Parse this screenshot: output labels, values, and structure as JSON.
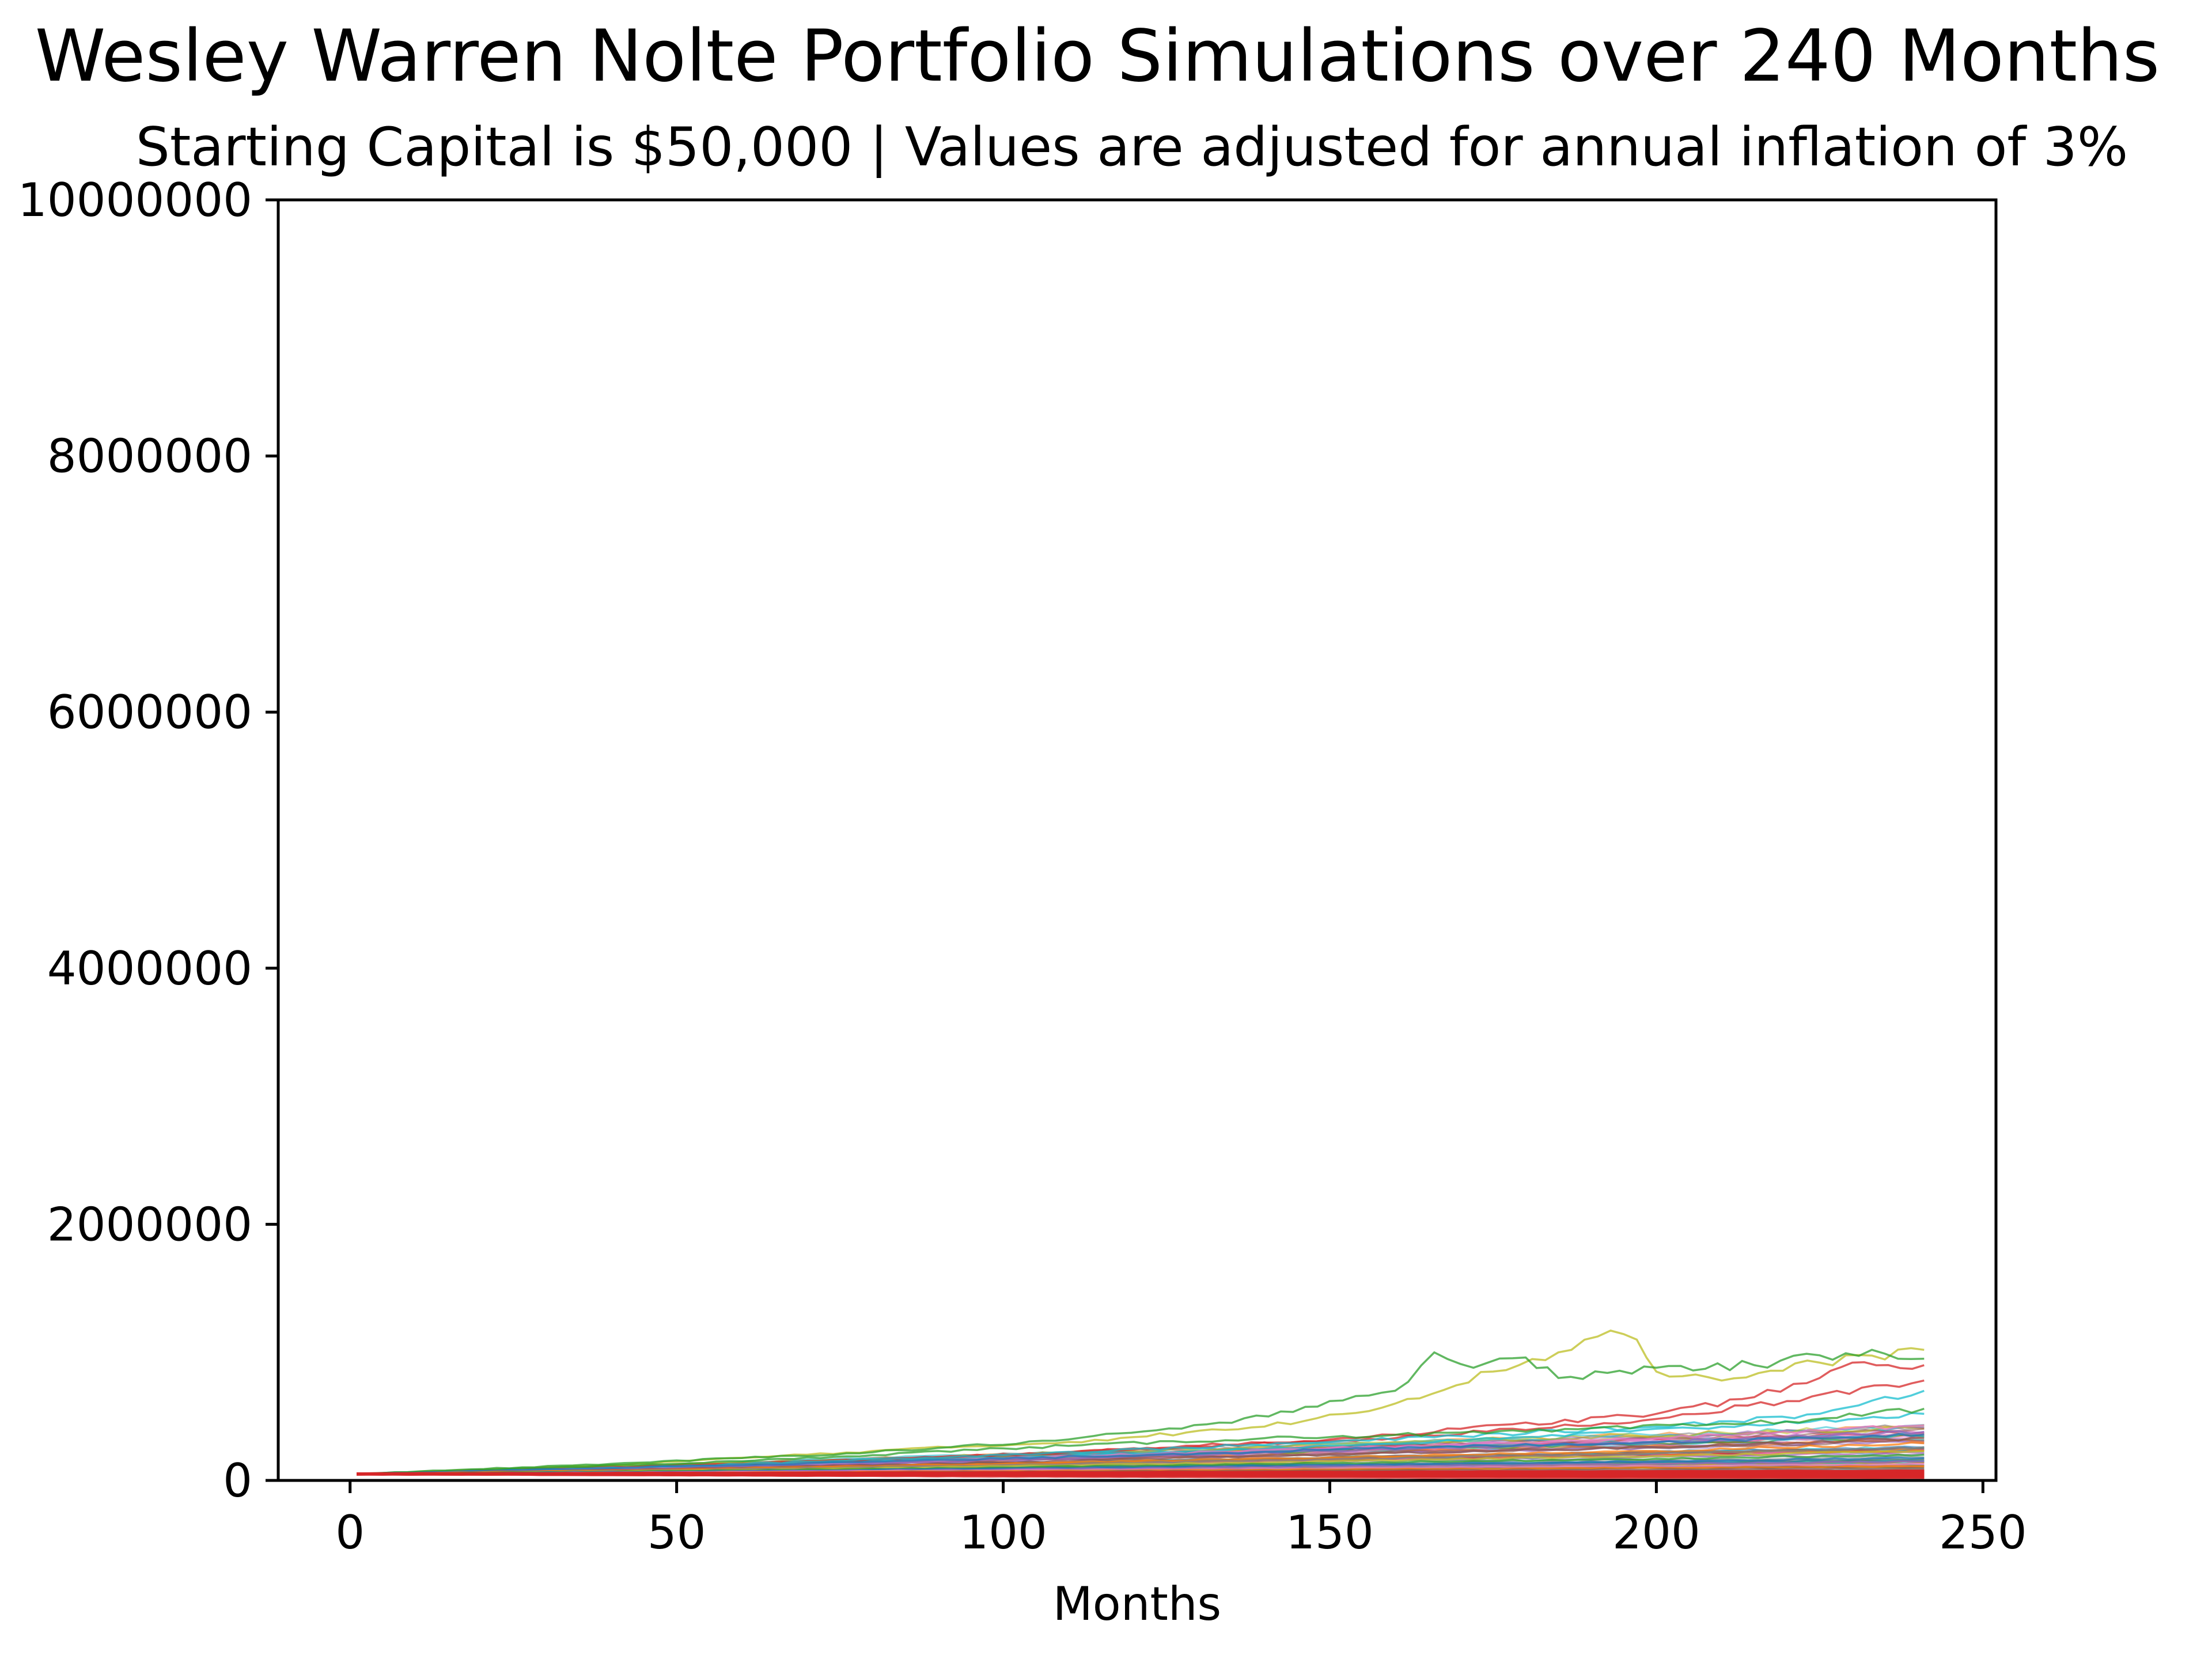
{
  "chart_data": {
    "type": "line",
    "title": "Wesley Warren Nolte Portfolio Simulations over 240 Months",
    "subtitle": "Starting Capital is $50,000 | Values are adjusted for annual inflation of 3%",
    "xlabel": "Months",
    "ylabel": "",
    "xlim": [
      -11,
      252
    ],
    "ylim": [
      0,
      10000000
    ],
    "x_ticks": [
      0,
      50,
      100,
      150,
      200,
      250
    ],
    "y_ticks": [
      0,
      2000000,
      4000000,
      6000000,
      8000000,
      10000000
    ],
    "x_tick_labels": [
      "0",
      "50",
      "100",
      "150",
      "200",
      "250"
    ],
    "y_tick_labels": [
      "0",
      "2000000",
      "4000000",
      "6000000",
      "8000000",
      "10000000"
    ],
    "grid": false,
    "legend": "none",
    "x_start": 1,
    "x_end": 241,
    "starting_value": 50000,
    "colors": [
      "#1f77b4",
      "#ff7f0e",
      "#2ca02c",
      "#d62728",
      "#9467bd",
      "#8c564b",
      "#e377c2",
      "#7f7f7f",
      "#bcbd22",
      "#17becf"
    ],
    "series_line_color": "#d62728",
    "series": [
      {
        "color": "#bcbd22",
        "points": [
          [
            1,
            50000
          ],
          [
            40,
            120000
          ],
          [
            80,
            230000
          ],
          [
            110,
            300000
          ],
          [
            140,
            420000
          ],
          [
            160,
            600000
          ],
          [
            175,
            850000
          ],
          [
            185,
            1000000
          ],
          [
            193,
            1170000
          ],
          [
            197,
            1100000
          ],
          [
            200,
            850000
          ],
          [
            210,
            780000
          ],
          [
            225,
            920000
          ],
          [
            241,
            1020000
          ]
        ]
      },
      {
        "color": "#2ca02c",
        "points": [
          [
            1,
            50000
          ],
          [
            40,
            130000
          ],
          [
            80,
            220000
          ],
          [
            110,
            320000
          ],
          [
            135,
            450000
          ],
          [
            150,
            620000
          ],
          [
            160,
            700000
          ],
          [
            166,
            1000000
          ],
          [
            172,
            880000
          ],
          [
            180,
            960000
          ],
          [
            185,
            800000
          ],
          [
            200,
            880000
          ],
          [
            215,
            900000
          ],
          [
            233,
            1020000
          ],
          [
            241,
            950000
          ]
        ]
      },
      {
        "color": "#d62728",
        "points": [
          [
            1,
            50000
          ],
          [
            60,
            130000
          ],
          [
            100,
            200000
          ],
          [
            150,
            320000
          ],
          [
            200,
            520000
          ],
          [
            215,
            650000
          ],
          [
            225,
            800000
          ],
          [
            230,
            920000
          ],
          [
            241,
            900000
          ]
        ]
      },
      {
        "color": "#d62728",
        "points": [
          [
            1,
            50000
          ],
          [
            60,
            120000
          ],
          [
            110,
            220000
          ],
          [
            160,
            330000
          ],
          [
            200,
            480000
          ],
          [
            220,
            620000
          ],
          [
            241,
            780000
          ]
        ]
      },
      {
        "color": "#17becf",
        "points": [
          [
            1,
            50000
          ],
          [
            50,
            110000
          ],
          [
            100,
            200000
          ],
          [
            150,
            300000
          ],
          [
            200,
            420000
          ],
          [
            225,
            520000
          ],
          [
            241,
            700000
          ]
        ]
      },
      {
        "color": "#17becf",
        "points": [
          [
            1,
            50000
          ],
          [
            70,
            130000
          ],
          [
            120,
            210000
          ],
          [
            170,
            310000
          ],
          [
            210,
            420000
          ],
          [
            241,
            520000
          ]
        ]
      },
      {
        "color": "#2ca02c",
        "points": [
          [
            1,
            50000
          ],
          [
            60,
            150000
          ],
          [
            100,
            250000
          ],
          [
            140,
            330000
          ],
          [
            180,
            380000
          ],
          [
            220,
            460000
          ],
          [
            241,
            560000
          ]
        ]
      },
      {
        "color": "#e377c2",
        "points": [
          [
            1,
            50000
          ],
          [
            50,
            100000
          ],
          [
            100,
            170000
          ],
          [
            150,
            250000
          ],
          [
            200,
            330000
          ],
          [
            241,
            430000
          ]
        ]
      },
      {
        "color": "#9467bd",
        "points": [
          [
            1,
            50000
          ],
          [
            50,
            95000
          ],
          [
            100,
            160000
          ],
          [
            150,
            230000
          ],
          [
            200,
            300000
          ],
          [
            241,
            380000
          ]
        ]
      },
      {
        "color": "#1f77b4",
        "points": [
          [
            1,
            50000
          ],
          [
            50,
            110000
          ],
          [
            100,
            170000
          ],
          [
            150,
            240000
          ],
          [
            200,
            300000
          ],
          [
            241,
            360000
          ]
        ]
      },
      {
        "color": "#8c564b",
        "points": [
          [
            1,
            50000
          ],
          [
            50,
            90000
          ],
          [
            100,
            140000
          ],
          [
            150,
            200000
          ],
          [
            200,
            260000
          ],
          [
            241,
            330000
          ]
        ]
      },
      {
        "color": "#ff7f0e",
        "points": [
          [
            1,
            50000
          ],
          [
            50,
            85000
          ],
          [
            100,
            130000
          ],
          [
            150,
            180000
          ],
          [
            200,
            230000
          ],
          [
            241,
            290000
          ]
        ]
      },
      {
        "color": "#7f7f7f",
        "points": [
          [
            1,
            50000
          ],
          [
            50,
            80000
          ],
          [
            100,
            120000
          ],
          [
            150,
            165000
          ],
          [
            200,
            210000
          ],
          [
            241,
            260000
          ]
        ]
      },
      {
        "color": "#bcbd22",
        "points": [
          [
            1,
            50000
          ],
          [
            50,
            75000
          ],
          [
            100,
            110000
          ],
          [
            150,
            150000
          ],
          [
            200,
            190000
          ],
          [
            241,
            230000
          ]
        ]
      },
      {
        "color": "#2ca02c",
        "points": [
          [
            1,
            50000
          ],
          [
            50,
            72000
          ],
          [
            100,
            100000
          ],
          [
            150,
            135000
          ],
          [
            200,
            170000
          ],
          [
            241,
            200000
          ]
        ]
      },
      {
        "color": "#1f77b4",
        "points": [
          [
            1,
            50000
          ],
          [
            50,
            68000
          ],
          [
            100,
            92000
          ],
          [
            150,
            120000
          ],
          [
            200,
            150000
          ],
          [
            241,
            175000
          ]
        ]
      },
      {
        "color": "#9467bd",
        "points": [
          [
            1,
            50000
          ],
          [
            50,
            65000
          ],
          [
            100,
            85000
          ],
          [
            150,
            108000
          ],
          [
            200,
            130000
          ],
          [
            241,
            150000
          ]
        ]
      },
      {
        "color": "#e377c2",
        "points": [
          [
            1,
            50000
          ],
          [
            50,
            62000
          ],
          [
            100,
            78000
          ],
          [
            150,
            95000
          ],
          [
            200,
            112000
          ],
          [
            241,
            128000
          ]
        ]
      },
      {
        "color": "#ff7f0e",
        "points": [
          [
            1,
            50000
          ],
          [
            50,
            60000
          ],
          [
            100,
            72000
          ],
          [
            150,
            85000
          ],
          [
            200,
            98000
          ],
          [
            241,
            110000
          ]
        ]
      },
      {
        "color": "#8c564b",
        "points": [
          [
            1,
            50000
          ],
          [
            50,
            58000
          ],
          [
            100,
            67000
          ],
          [
            150,
            76000
          ],
          [
            200,
            86000
          ],
          [
            241,
            95000
          ]
        ]
      },
      {
        "color": "#7f7f7f",
        "points": [
          [
            1,
            50000
          ],
          [
            50,
            56000
          ],
          [
            100,
            62000
          ],
          [
            150,
            68000
          ],
          [
            200,
            75000
          ],
          [
            241,
            82000
          ]
        ]
      },
      {
        "color": "#17becf",
        "points": [
          [
            1,
            50000
          ],
          [
            50,
            54000
          ],
          [
            100,
            58000
          ],
          [
            150,
            62000
          ],
          [
            200,
            66000
          ],
          [
            241,
            70000
          ]
        ]
      },
      {
        "color": "#d62728",
        "points": [
          [
            1,
            50000
          ],
          [
            50,
            52000
          ],
          [
            100,
            54000
          ],
          [
            150,
            56000
          ],
          [
            200,
            58000
          ],
          [
            241,
            60000
          ]
        ]
      },
      {
        "color": "#d62728",
        "points": [
          [
            1,
            50000
          ],
          [
            50,
            48000
          ],
          [
            100,
            46000
          ],
          [
            150,
            44000
          ],
          [
            200,
            42000
          ],
          [
            241,
            40000
          ]
        ]
      },
      {
        "color": "#d62728",
        "points": [
          [
            1,
            50000
          ],
          [
            50,
            44000
          ],
          [
            100,
            38000
          ],
          [
            150,
            32000
          ],
          [
            200,
            27000
          ],
          [
            241,
            22000
          ]
        ]
      },
      {
        "color": "#d62728",
        "points": [
          [
            1,
            50000
          ],
          [
            50,
            40000
          ],
          [
            100,
            30000
          ],
          [
            150,
            22000
          ],
          [
            200,
            15000
          ],
          [
            241,
            10000
          ]
        ]
      }
    ]
  }
}
